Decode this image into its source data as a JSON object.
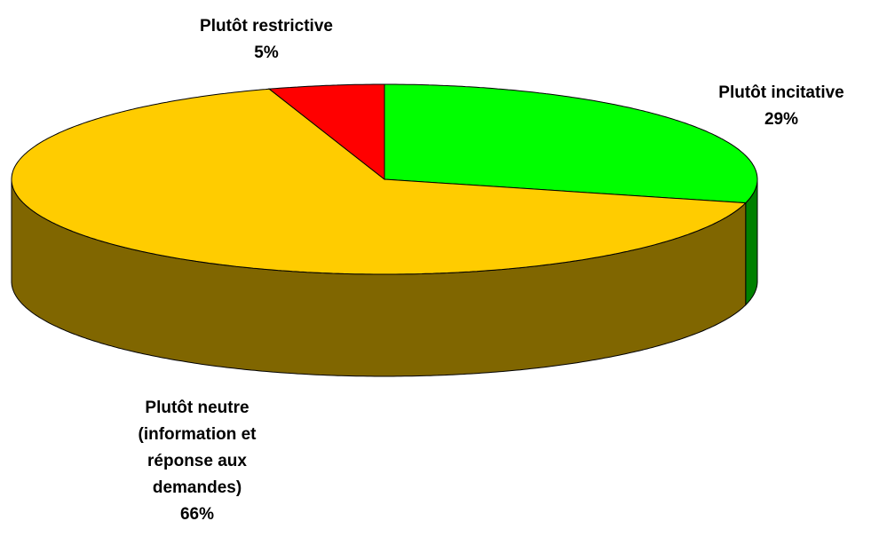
{
  "chart_data": {
    "type": "pie3d",
    "categories": [
      "Plutôt incitative",
      "Plutôt neutre (information et réponse aux demandes)",
      "Plutôt restrictive"
    ],
    "values": [
      29,
      66,
      5
    ],
    "value_labels": [
      "29%",
      "66%",
      "5%"
    ],
    "colors": [
      "#00ff00",
      "#ffcc00",
      "#ff0000"
    ]
  }
}
